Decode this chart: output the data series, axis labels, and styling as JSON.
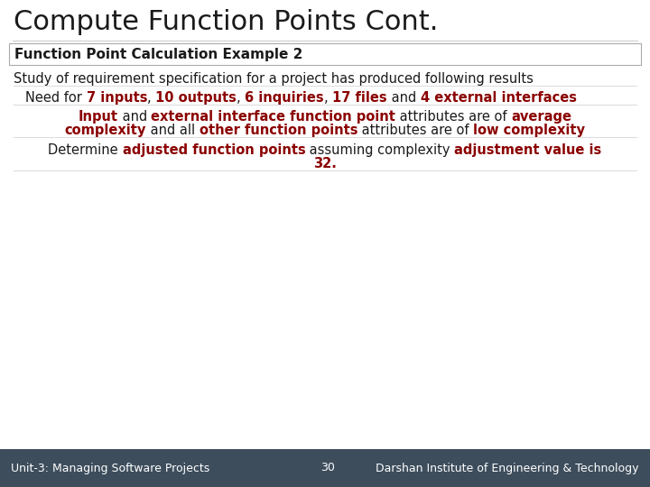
{
  "title": "Compute Function Points Cont.",
  "subtitle_box": "Function Point Calculation Example 2",
  "bg_color": "#ffffff",
  "title_color": "#1a1a1a",
  "title_fontsize": 22,
  "subtitle_fontsize": 11,
  "body_fontsize": 10.5,
  "footer_fontsize": 9,
  "red_color": "#8b0000",
  "black_color": "#1a1a1a",
  "footer_bg": "#3d4d5c",
  "footer_text_left": "Unit-3: Managing Software Projects",
  "footer_text_center": "30",
  "footer_text_right": "Darshan Institute of Engineering & Technology"
}
